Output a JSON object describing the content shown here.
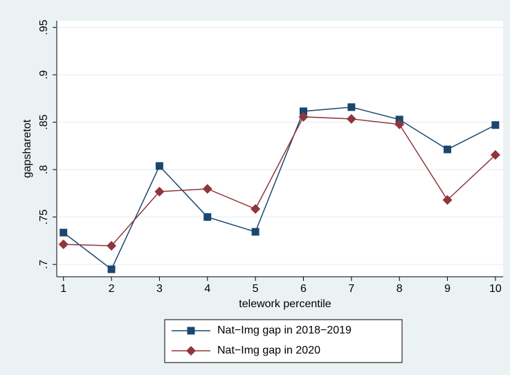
{
  "chart_data": {
    "type": "line",
    "x_label": "telework percentile",
    "y_label": "gapsharetot",
    "x": [
      1,
      2,
      3,
      4,
      5,
      6,
      7,
      8,
      9,
      10
    ],
    "series": [
      {
        "name": "Nat−Img gap in 2018−2019",
        "color": "#1a476f",
        "marker": "square",
        "values": [
          0.7336,
          0.6949,
          0.8038,
          0.75,
          0.7344,
          0.8615,
          0.8659,
          0.8528,
          0.8213,
          0.847
        ]
      },
      {
        "name": "Nat−Img gap in  2020",
        "color": "#90353b",
        "marker": "diamond",
        "values": [
          0.7212,
          0.7197,
          0.7768,
          0.7797,
          0.7585,
          0.8557,
          0.8535,
          0.8477,
          0.768,
          0.8155
        ]
      }
    ],
    "xlim": [
      0.86,
      10.16
    ],
    "xticks": [
      1,
      2,
      3,
      4,
      5,
      6,
      7,
      8,
      9,
      10
    ],
    "ylim": [
      0.687,
      0.957
    ],
    "yticks": [
      {
        "value": 0.7,
        "label": ".7"
      },
      {
        "value": 0.75,
        "label": ".75"
      },
      {
        "value": 0.8,
        "label": ".8"
      },
      {
        "value": 0.85,
        "label": ".85"
      },
      {
        "value": 0.9,
        "label": ".9"
      },
      {
        "value": 0.95,
        "label": ".95"
      }
    ],
    "grid": true,
    "legend": "bottom"
  }
}
